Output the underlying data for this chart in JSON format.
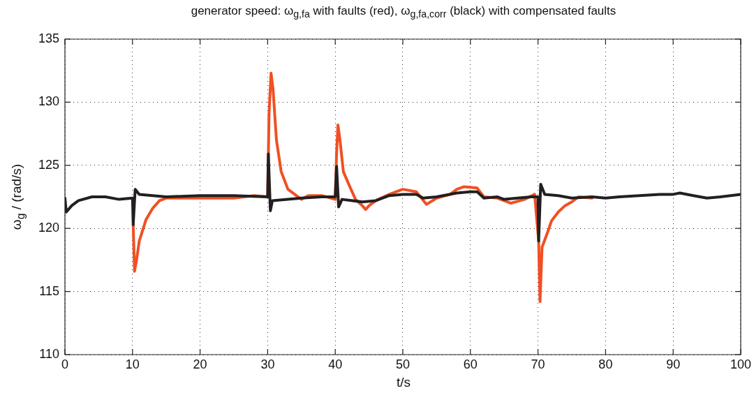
{
  "chart_data": {
    "type": "line",
    "title": "generator speed: ω$_{g,fa}$ with faults (red), ω$_{g,fa,corr}$ (black) with compensated faults",
    "xlabel": "t/s",
    "ylabel": "ω$_{g}$ / (rad/s)",
    "xlim": [
      0,
      100
    ],
    "xticks": [
      0,
      10,
      20,
      30,
      40,
      50,
      60,
      70,
      80,
      90,
      100
    ],
    "ylim": [
      110,
      135
    ],
    "yticks": [
      110,
      115,
      120,
      125,
      130,
      135
    ],
    "grid": true,
    "legend": false,
    "marker": "none",
    "line_style": "solid",
    "series": [
      {
        "color": "#f05023",
        "x": [
          10.1,
          10.3,
          10.6,
          11,
          12,
          13,
          14,
          15,
          20,
          25,
          28,
          30,
          30.2,
          30.5,
          30.8,
          31.3,
          32,
          33,
          34,
          35,
          36,
          38,
          40,
          40.2,
          40.4,
          40.7,
          41.2,
          42,
          43,
          44,
          44.5,
          45,
          46,
          48,
          50,
          52,
          53.5,
          55,
          57,
          58,
          59,
          61,
          62,
          64,
          66,
          68,
          69.5,
          70.1,
          70.3,
          70.6,
          71.5,
          72,
          73,
          74,
          75,
          76,
          78
        ],
        "values": [
          120.3,
          116.6,
          117.5,
          119,
          120.7,
          121.6,
          122.2,
          122.4,
          122.4,
          122.4,
          122.6,
          122.5,
          129,
          132.3,
          131,
          127,
          124.5,
          123.1,
          122.7,
          122.3,
          122.6,
          122.6,
          122.3,
          126,
          128.2,
          127,
          124.5,
          123.5,
          122.3,
          121.8,
          121.5,
          121.8,
          122.2,
          122.7,
          123.1,
          122.9,
          121.9,
          122.4,
          122.7,
          123.1,
          123.3,
          123.2,
          122.5,
          122.4,
          122,
          122.3,
          122.7,
          119,
          114.2,
          118.5,
          119.8,
          120.6,
          121.3,
          121.8,
          122.1,
          122.5,
          122.4
        ]
      },
      {
        "color": "#231f20",
        "x": [
          0,
          0.2,
          1,
          2,
          4,
          6,
          8,
          10,
          10.1,
          10.4,
          11,
          13,
          15,
          20,
          25,
          30,
          30.1,
          30.4,
          30.7,
          33,
          35,
          38,
          40,
          40.2,
          40.5,
          41,
          44,
          46,
          48,
          50,
          52,
          53,
          55,
          58,
          60,
          61,
          62,
          64,
          65,
          67,
          69,
          70,
          70.1,
          70.4,
          71,
          73,
          75,
          78,
          80,
          82,
          85,
          88,
          90,
          91,
          93,
          95,
          97,
          100
        ],
        "values": [
          122.4,
          121.3,
          121.8,
          122.2,
          122.5,
          122.5,
          122.3,
          122.4,
          120.3,
          123.1,
          122.7,
          122.6,
          122.5,
          122.6,
          122.6,
          122.5,
          125.9,
          121.4,
          122.2,
          122.3,
          122.4,
          122.5,
          122.5,
          124.9,
          121.7,
          122.3,
          122.1,
          122.2,
          122.6,
          122.7,
          122.7,
          122.4,
          122.5,
          122.8,
          122.9,
          122.9,
          122.4,
          122.5,
          122.3,
          122.4,
          122.5,
          122.5,
          119,
          123.5,
          122.7,
          122.6,
          122.4,
          122.5,
          122.4,
          122.5,
          122.6,
          122.7,
          122.7,
          122.8,
          122.6,
          122.4,
          122.5,
          122.7
        ]
      }
    ]
  }
}
